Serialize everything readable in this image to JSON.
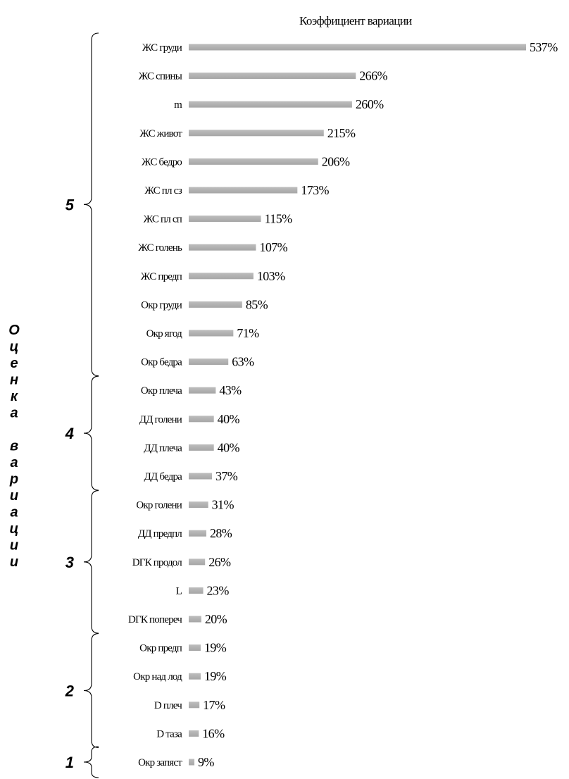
{
  "chart_data": {
    "type": "bar",
    "orientation": "horizontal",
    "title": "Коэффициент вариации",
    "xlim": [
      0,
      537
    ],
    "grid": false,
    "categories": [
      "ЖС груди",
      "ЖС спины",
      "m",
      "ЖС живот",
      "ЖС бедро",
      "ЖС пл сз",
      "ЖС пл сп",
      "ЖС голень",
      "ЖС предп",
      "Окр груди",
      "Окр ягод",
      "Окр бедра",
      "Окр плеча",
      "ДД голени",
      "ДД плеча",
      "ДД бедра",
      "Окр голени",
      "ДД предпл",
      "DГК продол",
      "L",
      "DГК попереч",
      "Окр предп",
      "Окр над лод",
      "D плеч",
      "D таза",
      "Окр запяст"
    ],
    "values": [
      537,
      266,
      260,
      215,
      206,
      173,
      115,
      107,
      103,
      85,
      71,
      63,
      43,
      40,
      40,
      37,
      31,
      28,
      26,
      23,
      20,
      19,
      19,
      17,
      16,
      9
    ],
    "value_labels": [
      "537%",
      "266%",
      "260%",
      "215%",
      "206%",
      "173%",
      "115%",
      "107%",
      "103%",
      "85%",
      "71%",
      "63%",
      "43%",
      "40%",
      "40%",
      "37%",
      "31%",
      "28%",
      "26%",
      "23%",
      "20%",
      "19%",
      "19%",
      "17%",
      "16%",
      "9%"
    ],
    "groups": [
      {
        "label": "5",
        "start": 0,
        "end": 11
      },
      {
        "label": "4",
        "start": 12,
        "end": 15
      },
      {
        "label": "3",
        "start": 16,
        "end": 20
      },
      {
        "label": "2",
        "start": 21,
        "end": 24
      },
      {
        "label": "1",
        "start": 25,
        "end": 25
      }
    ],
    "side_label": "Оценка вариации",
    "colors": {
      "bar_top": "#bdbdbd",
      "bar_bottom": "#a6a6a6"
    }
  }
}
